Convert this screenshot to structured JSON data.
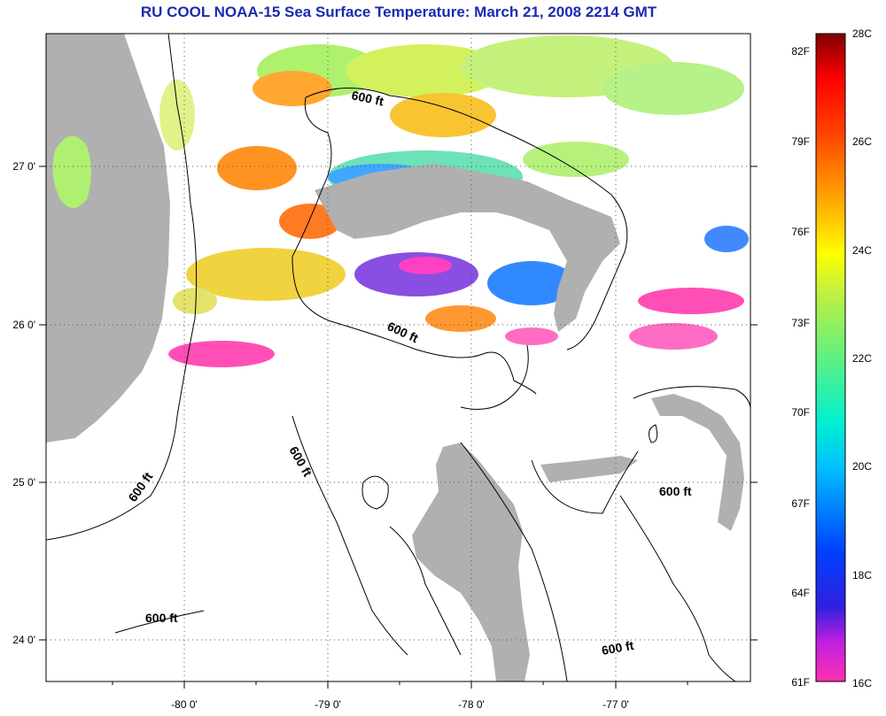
{
  "title": "RU COOL  NOAA-15  Sea Surface Temperature:  March 21, 2008 2214 GMT",
  "map": {
    "lon_ticks": [
      "-80 0'",
      "-79 0'",
      "-78 0'",
      "-77 0'"
    ],
    "lat_ticks": [
      "27 0'",
      "26 0'",
      "25 0'",
      "24 0'"
    ],
    "contour_label": "600 ft"
  },
  "colorbar": {
    "fahrenheit_ticks": [
      "82F",
      "79F",
      "76F",
      "73F",
      "70F",
      "67F",
      "64F",
      "61F"
    ],
    "celsius_ticks": [
      "28C",
      "26C",
      "24C",
      "22C",
      "20C",
      "18C",
      "16C"
    ]
  },
  "colors": {
    "land": "#b0b0b0",
    "title": "#1a2bb0"
  }
}
